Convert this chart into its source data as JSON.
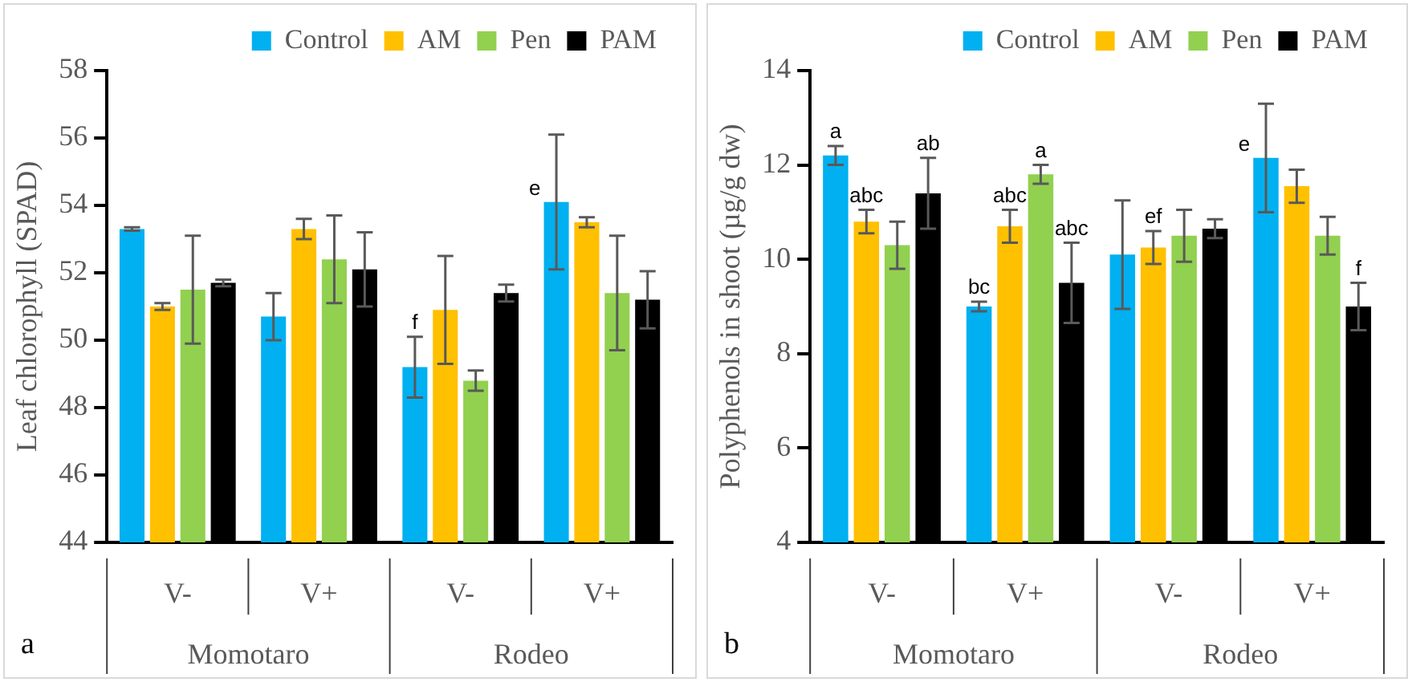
{
  "chart_data": [
    {
      "type": "bar",
      "ylabel": "Leaf chlorophyll (SPAD)",
      "categories": [
        "V-",
        "V+",
        "V-",
        "V+"
      ],
      "ylim": [
        44,
        58
      ],
      "yticks": [
        44,
        46,
        48,
        50,
        52,
        54,
        56,
        58
      ],
      "grid": false,
      "legend": "top right",
      "annotations": [
        "Momotaro",
        "Rodeo",
        "a"
      ],
      "series": [
        {
          "name": "Control",
          "color": "#00b0f0",
          "values": [
            53.3,
            50.7,
            49.2,
            54.1
          ],
          "errors": [
            0.05,
            0.7,
            0.9,
            2.0
          ],
          "value_labels": [
            null,
            null,
            "f",
            "e"
          ]
        },
        {
          "name": "AM",
          "color": "#ffc000",
          "values": [
            51.0,
            53.3,
            50.9,
            53.5
          ],
          "errors": [
            0.1,
            0.3,
            1.6,
            0.15
          ]
        },
        {
          "name": "Pen",
          "color": "#92d050",
          "values": [
            51.5,
            52.4,
            48.8,
            51.4
          ],
          "errors": [
            1.6,
            1.3,
            0.3,
            1.7
          ]
        },
        {
          "name": "PAM",
          "color": "#000000",
          "values": [
            51.7,
            52.1,
            51.4,
            51.2
          ],
          "errors": [
            0.1,
            1.1,
            0.25,
            0.85
          ]
        }
      ]
    },
    {
      "type": "bar",
      "ylabel": "Polyphenols in shoot (µg/g dw)",
      "categories": [
        "V-",
        "V+",
        "V-",
        "V+"
      ],
      "ylim": [
        4,
        14
      ],
      "yticks": [
        4,
        6,
        8,
        10,
        12,
        14
      ],
      "grid": false,
      "legend": "top right",
      "annotations": [
        "Momotaro",
        "Rodeo",
        "b"
      ],
      "series": [
        {
          "name": "Control",
          "color": "#00b0f0",
          "values": [
            12.2,
            9.0,
            10.1,
            12.15
          ],
          "errors": [
            0.2,
            0.1,
            1.15,
            1.15
          ],
          "value_labels": [
            "a",
            "bc",
            null,
            "e"
          ]
        },
        {
          "name": "AM",
          "color": "#ffc000",
          "values": [
            10.8,
            10.7,
            10.25,
            11.55
          ],
          "errors": [
            0.25,
            0.35,
            0.35,
            0.35
          ],
          "value_labels": [
            "abc",
            "abc",
            "ef",
            null
          ]
        },
        {
          "name": "Pen",
          "color": "#92d050",
          "values": [
            10.3,
            11.8,
            10.5,
            10.5
          ],
          "errors": [
            0.5,
            0.2,
            0.55,
            0.4
          ],
          "value_labels": [
            null,
            "a",
            null,
            null
          ]
        },
        {
          "name": "PAM",
          "color": "#000000",
          "values": [
            11.4,
            9.5,
            10.65,
            9.0
          ],
          "errors": [
            0.75,
            0.85,
            0.2,
            0.5
          ],
          "value_labels": [
            "ab",
            "abc",
            null,
            "f"
          ]
        }
      ]
    }
  ]
}
